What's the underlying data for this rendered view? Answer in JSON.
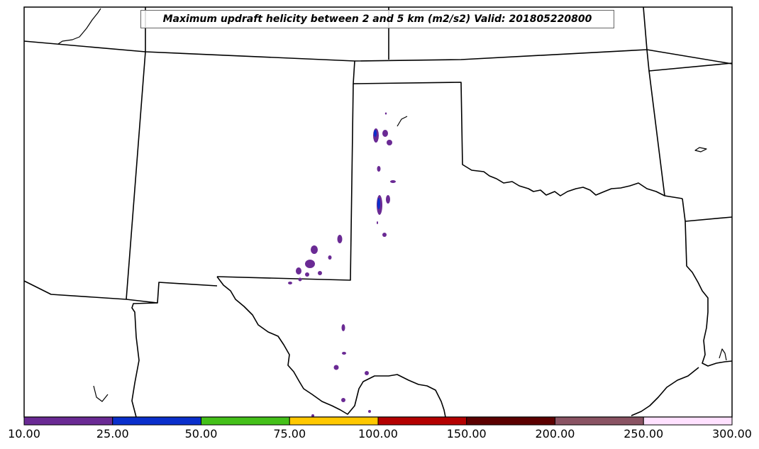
{
  "title": "Maximum updraft helicity between 2 and 5 km (m2/s2) Valid: 201805220800",
  "colorbar": {
    "ticks": [
      "10.00",
      "25.00",
      "50.00",
      "75.00",
      "100.00",
      "150.00",
      "200.00",
      "250.00",
      "300.00"
    ],
    "colors": [
      "#6a2a94",
      "#0a2fcc",
      "#44c019",
      "#ffc800",
      "#b40000",
      "#5c0000",
      "#8a5363",
      "#ffe1ff"
    ]
  },
  "colors": {
    "boundary": "#000000",
    "frame": "#000000",
    "cell_outer": "#6a2a94",
    "cell_inner": "#0a2fcc"
  }
}
